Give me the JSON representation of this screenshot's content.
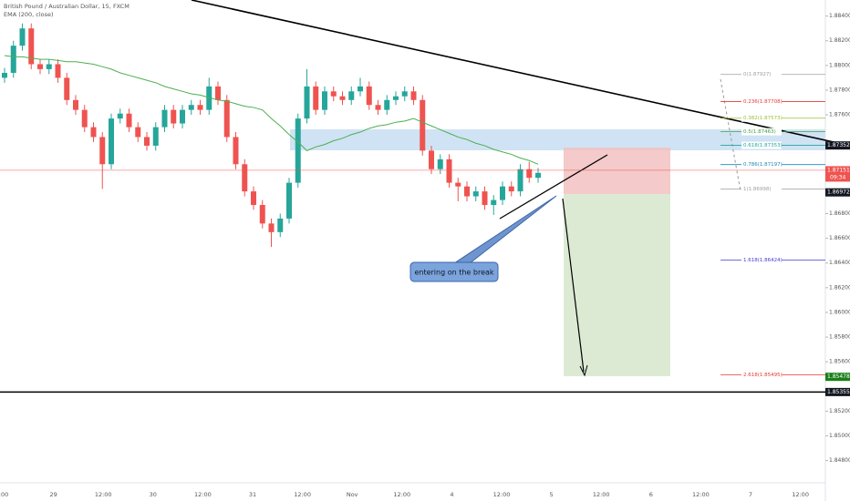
{
  "chart_data": {
    "type": "candlestick",
    "title": "British Pound / Australian Dollar, 15, FXCM",
    "x_labels": [
      ":00",
      "29",
      "12:00",
      "30",
      "12:00",
      "31",
      "12:00",
      "Nov",
      "12:00",
      "4",
      "12:00",
      "5",
      "12:00",
      "6",
      "12:00",
      "7",
      "12:00"
    ],
    "up_color": "#26a69a",
    "down_color": "#ef5350",
    "open": [
      1.879,
      1.8794,
      1.8816,
      1.883,
      1.8801,
      1.8797,
      1.8801,
      1.879,
      1.8772,
      1.8764,
      1.875,
      1.8742,
      1.872,
      1.8757,
      1.8761,
      1.875,
      1.8742,
      1.8735,
      1.875,
      1.8764,
      1.8753,
      1.8764,
      1.8768,
      1.8764,
      1.8783,
      1.8772,
      1.8742,
      1.872,
      1.8698,
      1.8687,
      1.8672,
      1.8665,
      1.8676,
      1.8705,
      1.8757,
      1.8783,
      1.8764,
      1.8779,
      1.8775,
      1.8772,
      1.8779,
      1.8783,
      1.8768,
      1.8764,
      1.8772,
      1.8775,
      1.8779,
      1.8772,
      1.8731,
      1.8716,
      1.8724,
      1.8705,
      1.8702,
      1.8694,
      1.8698,
      1.8687,
      1.8691,
      1.8702,
      1.8698,
      1.8716,
      1.8709
    ],
    "high": [
      1.8798,
      1.882,
      1.8834,
      1.8834,
      1.8805,
      1.8805,
      1.8805,
      1.8794,
      1.8776,
      1.8768,
      1.8754,
      1.8746,
      1.8761,
      1.8765,
      1.8765,
      1.8754,
      1.8746,
      1.8754,
      1.8768,
      1.8768,
      1.8768,
      1.8772,
      1.8772,
      1.879,
      1.8787,
      1.8776,
      1.8746,
      1.8724,
      1.8702,
      1.8691,
      1.8676,
      1.868,
      1.8709,
      1.8761,
      1.8797,
      1.8787,
      1.8783,
      1.8783,
      1.8779,
      1.8783,
      1.879,
      1.8787,
      1.8772,
      1.8776,
      1.8779,
      1.8783,
      1.8783,
      1.8776,
      1.8735,
      1.8728,
      1.8728,
      1.8709,
      1.8706,
      1.8702,
      1.8702,
      1.8695,
      1.8706,
      1.8706,
      1.872,
      1.8722,
      1.8717
    ],
    "low": [
      1.8786,
      1.879,
      1.8812,
      1.8797,
      1.8793,
      1.8793,
      1.8786,
      1.8768,
      1.876,
      1.8746,
      1.8738,
      1.87,
      1.8716,
      1.8753,
      1.8746,
      1.8738,
      1.8731,
      1.8731,
      1.8746,
      1.8749,
      1.8749,
      1.876,
      1.876,
      1.876,
      1.8768,
      1.8738,
      1.8716,
      1.8694,
      1.8683,
      1.8668,
      1.8653,
      1.8661,
      1.8672,
      1.8701,
      1.8753,
      1.876,
      1.876,
      1.8771,
      1.8768,
      1.8768,
      1.8775,
      1.8764,
      1.876,
      1.876,
      1.8768,
      1.8771,
      1.8768,
      1.8727,
      1.8712,
      1.8712,
      1.8701,
      1.869,
      1.869,
      1.869,
      1.8683,
      1.8679,
      1.8687,
      1.8694,
      1.8694,
      1.8705,
      1.8705
    ],
    "close": [
      1.8794,
      1.8816,
      1.883,
      1.8801,
      1.8797,
      1.8801,
      1.879,
      1.8772,
      1.8764,
      1.875,
      1.8742,
      1.872,
      1.8757,
      1.8761,
      1.875,
      1.8742,
      1.8735,
      1.875,
      1.8764,
      1.8753,
      1.8764,
      1.8768,
      1.8764,
      1.8783,
      1.8772,
      1.8742,
      1.872,
      1.8698,
      1.8687,
      1.8672,
      1.8665,
      1.8676,
      1.8705,
      1.8757,
      1.8783,
      1.8764,
      1.8779,
      1.8775,
      1.8772,
      1.8779,
      1.8783,
      1.8768,
      1.8764,
      1.8772,
      1.8775,
      1.8779,
      1.8772,
      1.8731,
      1.8716,
      1.8724,
      1.8705,
      1.8702,
      1.8694,
      1.8698,
      1.8687,
      1.8691,
      1.8702,
      1.8698,
      1.8716,
      1.8709,
      1.8713
    ],
    "ema": {
      "name": "EMA (200, close)",
      "color": "#4caf50",
      "values": [
        1.8808,
        1.8807,
        1.8807,
        1.8806,
        1.8805,
        1.8805,
        1.8804,
        1.8803,
        1.8803,
        1.8802,
        1.8801,
        1.8799,
        1.8797,
        1.8794,
        1.8792,
        1.879,
        1.8788,
        1.8786,
        1.8783,
        1.8781,
        1.8779,
        1.8777,
        1.8776,
        1.8774,
        1.8772,
        1.8771,
        1.8769,
        1.8767,
        1.8766,
        1.8764,
        1.8757,
        1.8751,
        1.8744,
        1.8738,
        1.8731,
        1.8734,
        1.8736,
        1.8739,
        1.8741,
        1.8744,
        1.8746,
        1.8749,
        1.8751,
        1.8752,
        1.8754,
        1.8755,
        1.8757,
        1.8754,
        1.8751,
        1.8748,
        1.8745,
        1.8742,
        1.874,
        1.8737,
        1.8735,
        1.8732,
        1.873,
        1.8728,
        1.8725,
        1.8723,
        1.872
      ]
    },
    "ylim": [
      1.8462,
      1.8853
    ],
    "yticks": [
      {
        "value": 1.884,
        "label": "1.88400"
      },
      {
        "value": 1.882,
        "label": "1.88200"
      },
      {
        "value": 1.88,
        "label": "1.88000"
      },
      {
        "value": 1.878,
        "label": "1.87800"
      },
      {
        "value": 1.876,
        "label": "1.87600"
      },
      {
        "value": 1.868,
        "label": "1.86800"
      },
      {
        "value": 1.866,
        "label": "1.86600"
      },
      {
        "value": 1.864,
        "label": "1.86400"
      },
      {
        "value": 1.862,
        "label": "1.86200"
      },
      {
        "value": 1.86,
        "label": "1.86000"
      },
      {
        "value": 1.858,
        "label": "1.85800"
      },
      {
        "value": 1.856,
        "label": "1.85600"
      },
      {
        "value": 1.852,
        "label": "1.85200"
      },
      {
        "value": 1.85,
        "label": "1.85000"
      },
      {
        "value": 1.848,
        "label": "1.84800"
      }
    ],
    "fib": [
      {
        "label": "0(1.87927)",
        "price": 1.87927,
        "color": "#9e9e9e"
      },
      {
        "label": "0.236(1.87708)",
        "price": 1.87708,
        "color": "#e53935"
      },
      {
        "label": "0.382(1.87573)",
        "price": 1.87573,
        "color": "#9bbf2f"
      },
      {
        "label": "0.5(1.87463)",
        "price": 1.87463,
        "color": "#43a047"
      },
      {
        "label": "0.618(1.87353)",
        "price": 1.87353,
        "color": "#26a69a"
      },
      {
        "label": "0.786(1.87197)",
        "price": 1.87197,
        "color": "#1e88b5"
      },
      {
        "label": "1(1.86998)",
        "price": 1.86998,
        "color": "#9e9e9e"
      },
      {
        "label": "1.618(1.86424)",
        "price": 1.86424,
        "color": "#3f3fd0"
      },
      {
        "label": "2.618(1.85495)",
        "price": 1.85495,
        "color": "#e53935"
      }
    ],
    "price_tags": [
      {
        "price": 1.87352,
        "color": "#131722"
      },
      {
        "price": 1.87151,
        "color": "#ef5350"
      },
      {
        "price": 1.86972,
        "color": "#131722"
      },
      {
        "price": 1.85478,
        "color": "#1b7f1b"
      },
      {
        "price": 1.85355,
        "color": "#131722"
      }
    ],
    "countdown": "09:34",
    "annotation": "entering on the break"
  }
}
